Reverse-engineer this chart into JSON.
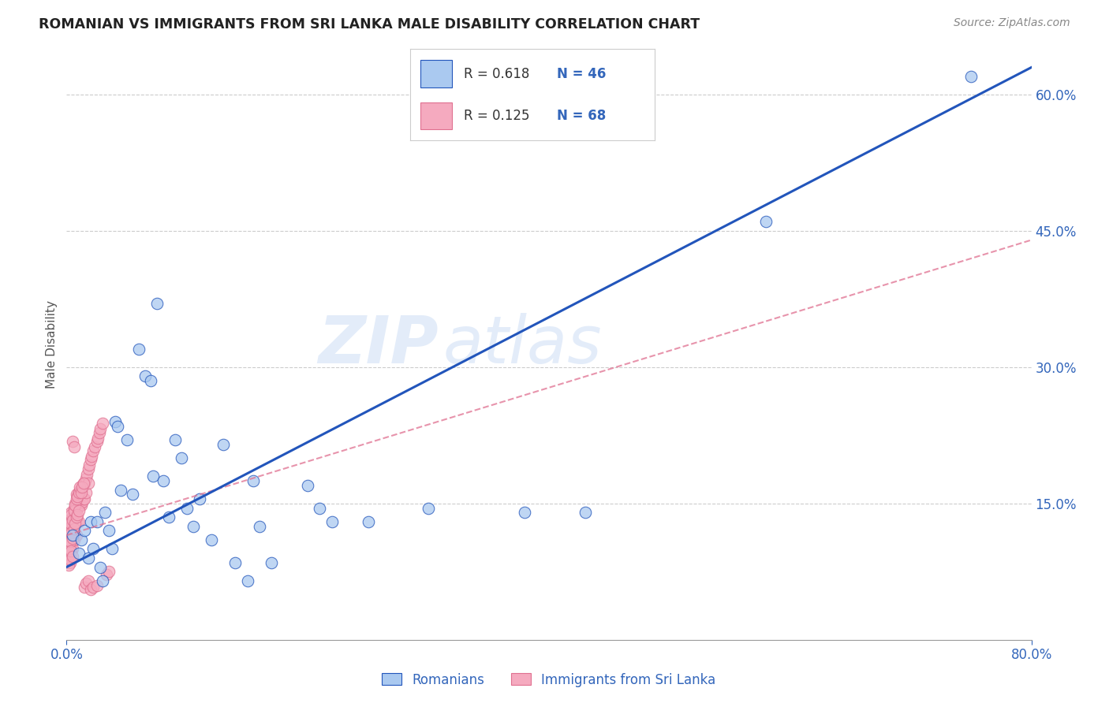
{
  "title": "ROMANIAN VS IMMIGRANTS FROM SRI LANKA MALE DISABILITY CORRELATION CHART",
  "source": "Source: ZipAtlas.com",
  "ylabel": "Male Disability",
  "xlim": [
    0.0,
    0.8
  ],
  "ylim": [
    0.0,
    0.65
  ],
  "yticks": [
    0.15,
    0.3,
    0.45,
    0.6
  ],
  "ytick_labels": [
    "15.0%",
    "30.0%",
    "45.0%",
    "60.0%"
  ],
  "romanian_R": 0.618,
  "romanian_N": 46,
  "srilanka_R": 0.125,
  "srilanka_N": 68,
  "romanian_color": "#aac9f0",
  "romanian_line_color": "#2255bb",
  "srilanka_color": "#f5aabf",
  "srilanka_line_color": "#e07090",
  "watermark_zip": "ZIP",
  "watermark_atlas": "atlas",
  "background_color": "#ffffff",
  "grid_color": "#cccccc",
  "romanian_line_x": [
    0.0,
    0.8
  ],
  "romanian_line_y": [
    0.08,
    0.63
  ],
  "srilanka_line_x": [
    0.0,
    0.8
  ],
  "srilanka_line_y": [
    0.115,
    0.44
  ],
  "romanians_scatter_x": [
    0.005,
    0.01,
    0.012,
    0.015,
    0.018,
    0.02,
    0.022,
    0.025,
    0.028,
    0.03,
    0.032,
    0.035,
    0.038,
    0.04,
    0.042,
    0.045,
    0.05,
    0.055,
    0.06,
    0.065,
    0.07,
    0.072,
    0.075,
    0.08,
    0.085,
    0.09,
    0.095,
    0.1,
    0.105,
    0.11,
    0.12,
    0.13,
    0.14,
    0.15,
    0.155,
    0.16,
    0.17,
    0.2,
    0.21,
    0.22,
    0.25,
    0.3,
    0.38,
    0.43,
    0.58,
    0.75
  ],
  "romanians_scatter_y": [
    0.115,
    0.095,
    0.11,
    0.12,
    0.09,
    0.13,
    0.1,
    0.13,
    0.08,
    0.065,
    0.14,
    0.12,
    0.1,
    0.24,
    0.235,
    0.165,
    0.22,
    0.16,
    0.32,
    0.29,
    0.285,
    0.18,
    0.37,
    0.175,
    0.135,
    0.22,
    0.2,
    0.145,
    0.125,
    0.155,
    0.11,
    0.215,
    0.085,
    0.065,
    0.175,
    0.125,
    0.085,
    0.17,
    0.145,
    0.13,
    0.13,
    0.145,
    0.14,
    0.14,
    0.46,
    0.62
  ],
  "srilanka_scatter_x": [
    0.001,
    0.001,
    0.001,
    0.002,
    0.002,
    0.002,
    0.002,
    0.003,
    0.003,
    0.003,
    0.003,
    0.003,
    0.004,
    0.004,
    0.004,
    0.004,
    0.004,
    0.005,
    0.005,
    0.005,
    0.005,
    0.006,
    0.006,
    0.006,
    0.006,
    0.007,
    0.007,
    0.007,
    0.007,
    0.008,
    0.008,
    0.008,
    0.008,
    0.009,
    0.009,
    0.009,
    0.01,
    0.01,
    0.01,
    0.011,
    0.011,
    0.012,
    0.012,
    0.013,
    0.013,
    0.014,
    0.014,
    0.015,
    0.015,
    0.016,
    0.016,
    0.017,
    0.018,
    0.018,
    0.019,
    0.02,
    0.021,
    0.022,
    0.023,
    0.025,
    0.026,
    0.027,
    0.028,
    0.03,
    0.033,
    0.035,
    0.005,
    0.006
  ],
  "srilanka_scatter_y": [
    0.12,
    0.1,
    0.095,
    0.115,
    0.095,
    0.105,
    0.085,
    0.13,
    0.115,
    0.105,
    0.095,
    0.085,
    0.14,
    0.125,
    0.115,
    0.105,
    0.09,
    0.135,
    0.125,
    0.115,
    0.1,
    0.145,
    0.135,
    0.12,
    0.11,
    0.15,
    0.14,
    0.13,
    0.115,
    0.16,
    0.148,
    0.135,
    0.115,
    0.158,
    0.145,
    0.13,
    0.162,
    0.148,
    0.13,
    0.165,
    0.148,
    0.165,
    0.148,
    0.17,
    0.152,
    0.172,
    0.155,
    0.172,
    0.155,
    0.178,
    0.162,
    0.182,
    0.188,
    0.172,
    0.192,
    0.198,
    0.202,
    0.208,
    0.212,
    0.218,
    0.222,
    0.228,
    0.232,
    0.238,
    0.072,
    0.075,
    0.218,
    0.212
  ],
  "extra_srilanka_x": [
    0.001,
    0.001,
    0.002,
    0.002,
    0.002,
    0.003,
    0.003,
    0.003,
    0.004,
    0.004,
    0.004,
    0.005,
    0.005,
    0.005,
    0.006,
    0.006,
    0.007,
    0.007,
    0.008,
    0.008,
    0.009,
    0.009,
    0.01,
    0.01,
    0.011,
    0.012,
    0.013,
    0.014,
    0.015,
    0.016,
    0.018,
    0.02,
    0.022,
    0.025
  ],
  "extra_srilanka_y": [
    0.108,
    0.092,
    0.118,
    0.098,
    0.082,
    0.128,
    0.108,
    0.088,
    0.138,
    0.118,
    0.098,
    0.132,
    0.112,
    0.092,
    0.142,
    0.122,
    0.148,
    0.128,
    0.155,
    0.135,
    0.158,
    0.138,
    0.162,
    0.142,
    0.168,
    0.162,
    0.168,
    0.172,
    0.058,
    0.062,
    0.065,
    0.055,
    0.058,
    0.06
  ]
}
